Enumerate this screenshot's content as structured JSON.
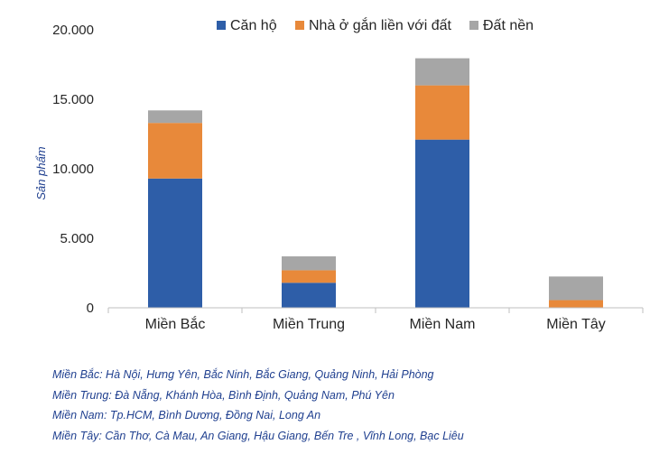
{
  "chart_data": {
    "type": "bar",
    "stacked": true,
    "categories": [
      "Miền Bắc",
      "Miền Trung",
      "Miền Nam",
      "Miền Tây"
    ],
    "series": [
      {
        "name": "Căn hộ",
        "color": "#2e5ea8",
        "values": [
          9300,
          1800,
          12100,
          0
        ]
      },
      {
        "name": "Nhà ở gắn liền với đất",
        "color": "#e8893a",
        "values": [
          4000,
          900,
          3900,
          550
        ]
      },
      {
        "name": "Đất nền",
        "color": "#a6a6a6",
        "values": [
          900,
          1000,
          1950,
          1700
        ]
      }
    ],
    "ylabel": "Sản phẩm",
    "ylim": [
      0,
      20000
    ],
    "yticks": [
      0,
      5000,
      10000,
      15000,
      20000
    ],
    "ytick_labels": [
      "0",
      "5.000",
      "10.000",
      "15.000",
      "20.000"
    ],
    "legend_position": "top",
    "grid": false
  },
  "notes": [
    "Miền Bắc: Hà Nội, Hưng Yên, Bắc Ninh, Bắc Giang, Quảng Ninh, Hải Phòng",
    "Miền Trung: Đà Nẵng, Khánh Hòa, Bình Định, Quảng Nam, Phú Yên",
    "Miền Nam: Tp.HCM, Bình Dương, Đồng Nai, Long An",
    "Miền Tây: Cần Thơ, Cà Mau, An Giang, Hậu Giang, Bến Tre , Vĩnh Long, Bạc Liêu"
  ]
}
